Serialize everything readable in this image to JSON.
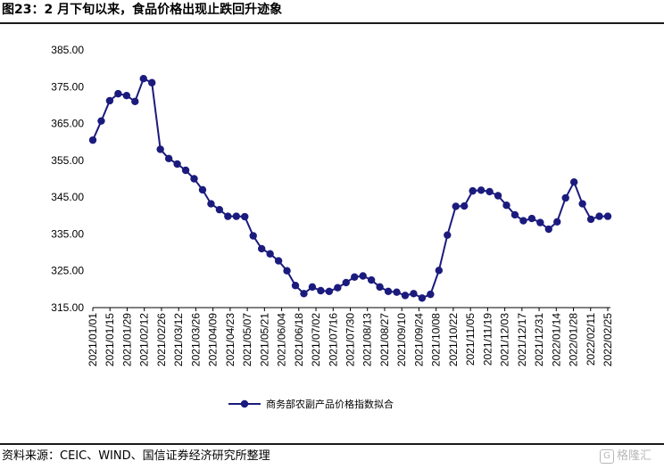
{
  "header": {
    "title": "图23：2 月下旬以来，食品价格出现止跌回升迹象"
  },
  "footer": {
    "source": "资料来源：CEIC、WIND、国信证券经济研究所整理",
    "watermark": "格隆汇"
  },
  "chart_data": {
    "type": "line",
    "title": "图23：2 月下旬以来，食品价格出现止跌回升迹象",
    "ylim": [
      315,
      385
    ],
    "yticks": [
      "315.00",
      "325.00",
      "335.00",
      "345.00",
      "355.00",
      "365.00",
      "375.00",
      "385.00"
    ],
    "xtick_labels": [
      "2021/01/01",
      "2021/01/15",
      "2021/01/29",
      "2021/02/12",
      "2021/02/26",
      "2021/03/12",
      "2021/03/26",
      "2021/04/09",
      "2021/04/23",
      "2021/05/07",
      "2021/05/21",
      "2021/06/04",
      "2021/06/18",
      "2021/07/02",
      "2021/07/16",
      "2021/07/30",
      "2021/08/13",
      "2021/08/27",
      "2021/09/10",
      "2021/09/24",
      "2021/10/08",
      "2021/10/22",
      "2021/11/05",
      "2021/11/19",
      "2021/12/03",
      "2021/12/17",
      "2021/12/31",
      "2022/01/14",
      "2022/01/28",
      "2022/02/11",
      "2022/02/25"
    ],
    "series": [
      {
        "name": "商务部农副产品价格指数拟合",
        "color": "#1b1b7e",
        "values": [
          360.5,
          365.7,
          371.2,
          373.1,
          372.6,
          371.0,
          377.2,
          376.1,
          358.0,
          355.5,
          354.0,
          352.3,
          350.0,
          347.0,
          343.2,
          341.6,
          339.8,
          339.8,
          339.7,
          334.5,
          331.0,
          329.6,
          327.7,
          325.0,
          321.0,
          318.8,
          320.6,
          319.6,
          319.4,
          320.4,
          321.8,
          323.3,
          323.6,
          322.5,
          320.6,
          319.4,
          319.2,
          318.3,
          318.8,
          317.6,
          318.6,
          325.1,
          334.7,
          342.5,
          342.6,
          346.7,
          346.9,
          346.5,
          345.4,
          342.8,
          340.2,
          338.6,
          339.2,
          338.1,
          336.3,
          338.3,
          344.8,
          349.1,
          343.2,
          339.0,
          339.8,
          339.8
        ]
      }
    ]
  }
}
